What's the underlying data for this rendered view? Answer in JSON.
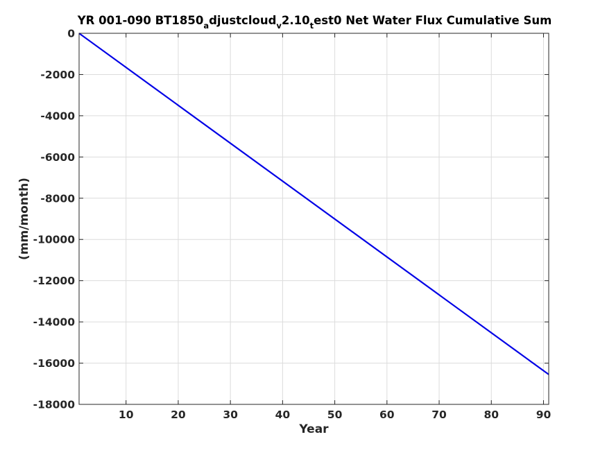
{
  "chart_data": {
    "type": "line",
    "title": {
      "segments": [
        {
          "text": "YR 001-090 BT1850",
          "sub": false
        },
        {
          "text": "a",
          "sub": true
        },
        {
          "text": "djustcloud",
          "sub": false
        },
        {
          "text": "v",
          "sub": true
        },
        {
          "text": "2.10",
          "sub": false
        },
        {
          "text": "t",
          "sub": true
        },
        {
          "text": "est0 Net Water Flux Cumulative Sum",
          "sub": false
        }
      ]
    },
    "xlabel": "Year",
    "ylabel": "(mm/month)",
    "xlim": [
      1,
      91
    ],
    "ylim": [
      -18000,
      0
    ],
    "xticks": [
      10,
      20,
      30,
      40,
      50,
      60,
      70,
      80,
      90
    ],
    "yticks": [
      0,
      -2000,
      -4000,
      -6000,
      -8000,
      -10000,
      -12000,
      -14000,
      -16000,
      -18000
    ],
    "grid": true,
    "series": [
      {
        "color": "#0000e6",
        "x": [
          1,
          91
        ],
        "y": [
          0,
          -16550
        ]
      }
    ]
  }
}
